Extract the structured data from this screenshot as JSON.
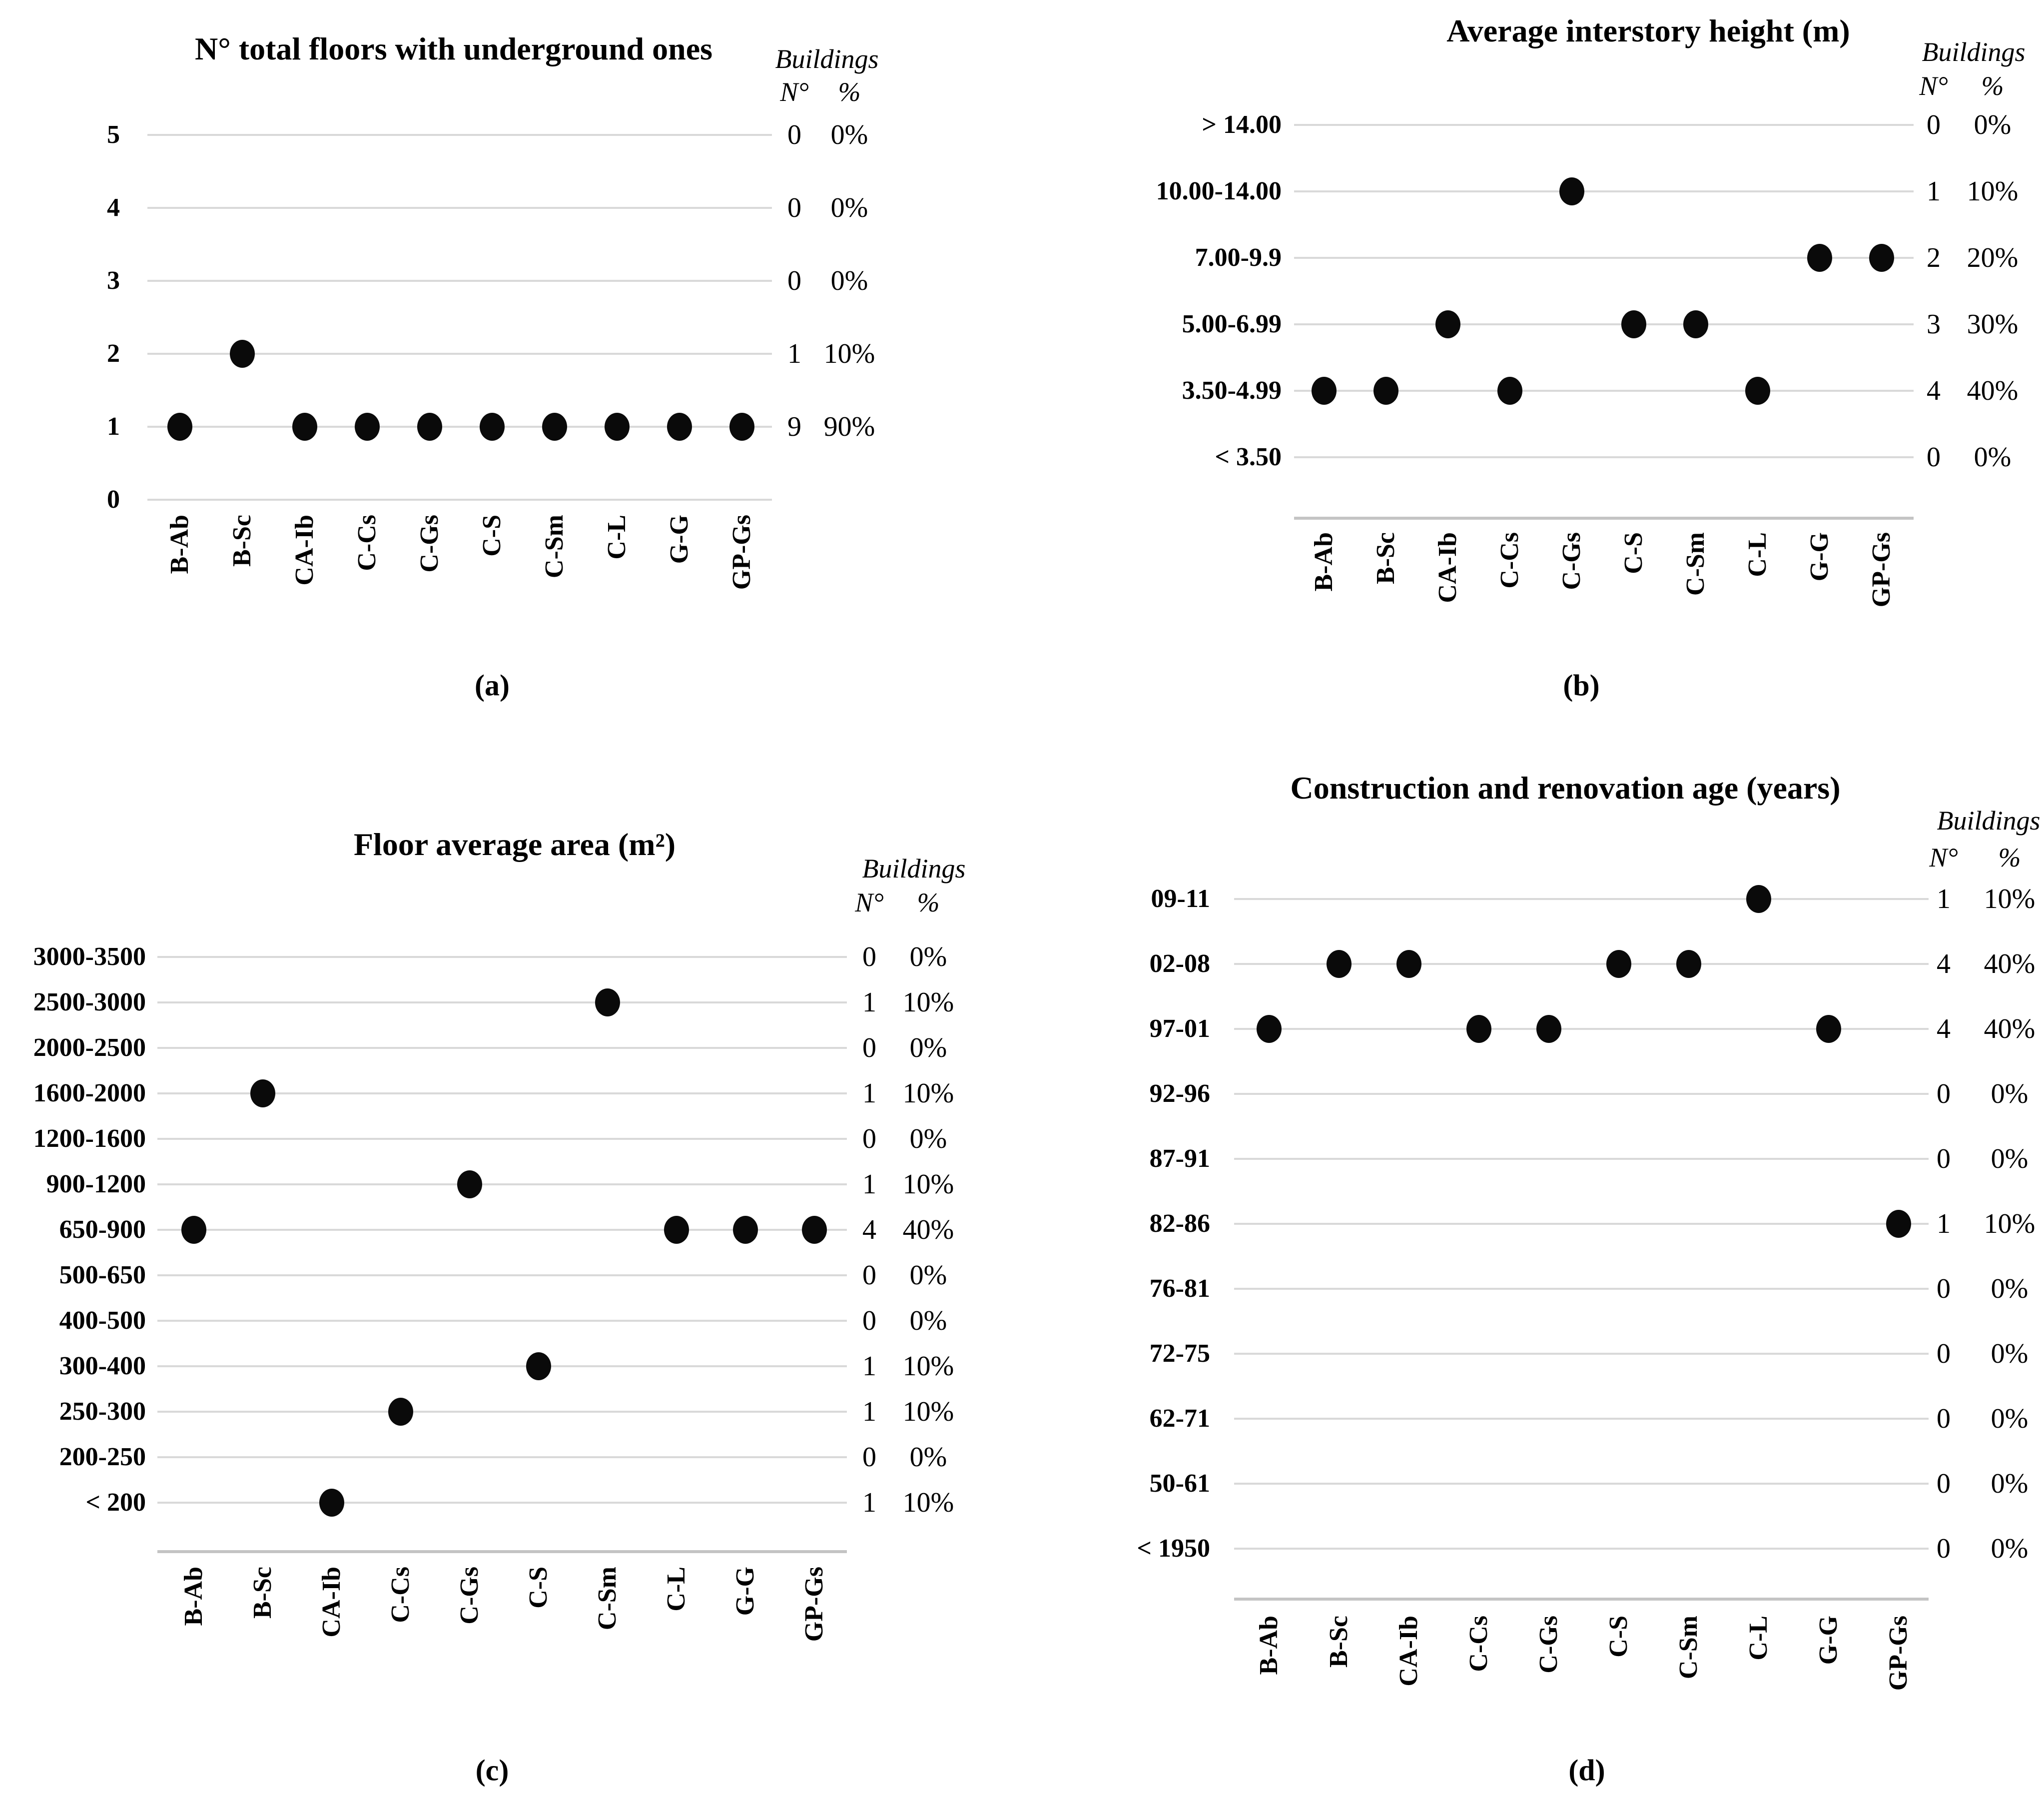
{
  "colors": {
    "dot": "#0a0a0a",
    "gridline": "#d9d9d9",
    "axis": "#c4c4c4",
    "text": "#000000"
  },
  "chart_data": [
    {
      "id": "a",
      "type": "scatter",
      "caption": "(a)",
      "title": "N° total floors with underground ones",
      "x_categories": [
        "B-Ab",
        "B-Sc",
        "CA-Ib",
        "C-Cs",
        "C-Gs",
        "C-S",
        "C-Sm",
        "C-L",
        "G-G",
        "GP-Gs"
      ],
      "y_categories": [
        "5",
        "4",
        "3",
        "2",
        "1",
        "0"
      ],
      "points": [
        {
          "x": "B-Ab",
          "y": "1"
        },
        {
          "x": "B-Sc",
          "y": "2"
        },
        {
          "x": "CA-Ib",
          "y": "1"
        },
        {
          "x": "C-Cs",
          "y": "1"
        },
        {
          "x": "C-Gs",
          "y": "1"
        },
        {
          "x": "C-S",
          "y": "1"
        },
        {
          "x": "C-Sm",
          "y": "1"
        },
        {
          "x": "C-L",
          "y": "1"
        },
        {
          "x": "G-G",
          "y": "1"
        },
        {
          "x": "GP-Gs",
          "y": "1"
        }
      ],
      "table": {
        "header": "Buildings",
        "col_n": "N°",
        "col_pct": "%",
        "rows": [
          {
            "y": "5",
            "n": "0",
            "pct": "0%"
          },
          {
            "y": "4",
            "n": "0",
            "pct": "0%"
          },
          {
            "y": "3",
            "n": "0",
            "pct": "0%"
          },
          {
            "y": "2",
            "n": "1",
            "pct": "10%"
          },
          {
            "y": "1",
            "n": "9",
            "pct": "90%"
          }
        ]
      },
      "legend": "none",
      "grid": "horizontal"
    },
    {
      "id": "b",
      "type": "scatter",
      "caption": "(b)",
      "title": "Average interstory height (m)",
      "x_categories": [
        "B-Ab",
        "B-Sc",
        "CA-Ib",
        "C-Cs",
        "C-Gs",
        "C-S",
        "C-Sm",
        "C-L",
        "G-G",
        "GP-Gs"
      ],
      "y_categories": [
        "> 14.00",
        "10.00-14.00",
        "7.00-9.9",
        "5.00-6.99",
        "3.50-4.99",
        "< 3.50"
      ],
      "points": [
        {
          "x": "B-Ab",
          "y": "3.50-4.99"
        },
        {
          "x": "B-Sc",
          "y": "3.50-4.99"
        },
        {
          "x": "CA-Ib",
          "y": "5.00-6.99"
        },
        {
          "x": "C-Cs",
          "y": "3.50-4.99"
        },
        {
          "x": "C-Gs",
          "y": "10.00-14.00"
        },
        {
          "x": "C-S",
          "y": "5.00-6.99"
        },
        {
          "x": "C-Sm",
          "y": "5.00-6.99"
        },
        {
          "x": "C-L",
          "y": "3.50-4.99"
        },
        {
          "x": "G-G",
          "y": "7.00-9.9"
        },
        {
          "x": "GP-Gs",
          "y": "7.00-9.9"
        }
      ],
      "table": {
        "header": "Buildings",
        "col_n": "N°",
        "col_pct": "%",
        "rows": [
          {
            "y": "> 14.00",
            "n": "0",
            "pct": "0%"
          },
          {
            "y": "10.00-14.00",
            "n": "1",
            "pct": "10%"
          },
          {
            "y": "7.00-9.9",
            "n": "2",
            "pct": "20%"
          },
          {
            "y": "5.00-6.99",
            "n": "3",
            "pct": "30%"
          },
          {
            "y": "3.50-4.99",
            "n": "4",
            "pct": "40%"
          },
          {
            "y": "< 3.50",
            "n": "0",
            "pct": "0%"
          }
        ]
      },
      "legend": "none",
      "grid": "horizontal"
    },
    {
      "id": "c",
      "type": "scatter",
      "caption": "(c)",
      "title": "Floor average area (m²)",
      "x_categories": [
        "B-Ab",
        "B-Sc",
        "CA-Ib",
        "C-Cs",
        "C-Gs",
        "C-S",
        "C-Sm",
        "C-L",
        "G-G",
        "GP-Gs"
      ],
      "y_categories": [
        "3000-3500",
        "2500-3000",
        "2000-2500",
        "1600-2000",
        "1200-1600",
        "900-1200",
        "650-900",
        "500-650",
        "400-500",
        "300-400",
        "250-300",
        "200-250",
        "< 200"
      ],
      "points": [
        {
          "x": "B-Ab",
          "y": "650-900"
        },
        {
          "x": "B-Sc",
          "y": "1600-2000"
        },
        {
          "x": "CA-Ib",
          "y": "< 200"
        },
        {
          "x": "C-Cs",
          "y": "250-300"
        },
        {
          "x": "C-Gs",
          "y": "900-1200"
        },
        {
          "x": "C-S",
          "y": "300-400"
        },
        {
          "x": "C-Sm",
          "y": "2500-3000"
        },
        {
          "x": "C-L",
          "y": "650-900"
        },
        {
          "x": "G-G",
          "y": "650-900"
        },
        {
          "x": "GP-Gs",
          "y": "650-900"
        }
      ],
      "table": {
        "header": "Buildings",
        "col_n": "N°",
        "col_pct": "%",
        "rows": [
          {
            "y": "3000-3500",
            "n": "0",
            "pct": "0%"
          },
          {
            "y": "2500-3000",
            "n": "1",
            "pct": "10%"
          },
          {
            "y": "2000-2500",
            "n": "0",
            "pct": "0%"
          },
          {
            "y": "1600-2000",
            "n": "1",
            "pct": "10%"
          },
          {
            "y": "1200-1600",
            "n": "0",
            "pct": "0%"
          },
          {
            "y": "900-1200",
            "n": "1",
            "pct": "10%"
          },
          {
            "y": "650-900",
            "n": "4",
            "pct": "40%"
          },
          {
            "y": "500-650",
            "n": "0",
            "pct": "0%"
          },
          {
            "y": "400-500",
            "n": "0",
            "pct": "0%"
          },
          {
            "y": "300-400",
            "n": "1",
            "pct": "10%"
          },
          {
            "y": "250-300",
            "n": "1",
            "pct": "10%"
          },
          {
            "y": "200-250",
            "n": "0",
            "pct": "0%"
          },
          {
            "y": "< 200",
            "n": "1",
            "pct": "10%"
          }
        ]
      },
      "legend": "none",
      "grid": "horizontal"
    },
    {
      "id": "d",
      "type": "scatter",
      "caption": "(d)",
      "title": "Construction and renovation age (years)",
      "x_categories": [
        "B-Ab",
        "B-Sc",
        "CA-Ib",
        "C-Cs",
        "C-Gs",
        "C-S",
        "C-Sm",
        "C-L",
        "G-G",
        "GP-Gs"
      ],
      "y_categories": [
        "09-11",
        "02-08",
        "97-01",
        "92-96",
        "87-91",
        "82-86",
        "76-81",
        "72-75",
        "62-71",
        "50-61",
        "< 1950"
      ],
      "points": [
        {
          "x": "B-Ab",
          "y": "97-01"
        },
        {
          "x": "B-Sc",
          "y": "02-08"
        },
        {
          "x": "CA-Ib",
          "y": "02-08"
        },
        {
          "x": "C-Cs",
          "y": "97-01"
        },
        {
          "x": "C-Gs",
          "y": "97-01"
        },
        {
          "x": "C-S",
          "y": "02-08"
        },
        {
          "x": "C-Sm",
          "y": "02-08"
        },
        {
          "x": "C-L",
          "y": "09-11"
        },
        {
          "x": "G-G",
          "y": "97-01"
        },
        {
          "x": "GP-Gs",
          "y": "82-86"
        }
      ],
      "table": {
        "header": "Buildings",
        "col_n": "N°",
        "col_pct": "%",
        "rows": [
          {
            "y": "09-11",
            "n": "1",
            "pct": "10%"
          },
          {
            "y": "02-08",
            "n": "4",
            "pct": "40%"
          },
          {
            "y": "97-01",
            "n": "4",
            "pct": "40%"
          },
          {
            "y": "92-96",
            "n": "0",
            "pct": "0%"
          },
          {
            "y": "87-91",
            "n": "0",
            "pct": "0%"
          },
          {
            "y": "82-86",
            "n": "1",
            "pct": "10%"
          },
          {
            "y": "76-81",
            "n": "0",
            "pct": "0%"
          },
          {
            "y": "72-75",
            "n": "0",
            "pct": "0%"
          },
          {
            "y": "62-71",
            "n": "0",
            "pct": "0%"
          },
          {
            "y": "50-61",
            "n": "0",
            "pct": "0%"
          },
          {
            "y": "< 1950",
            "n": "0",
            "pct": "0%"
          }
        ]
      },
      "legend": "none",
      "grid": "horizontal"
    }
  ]
}
